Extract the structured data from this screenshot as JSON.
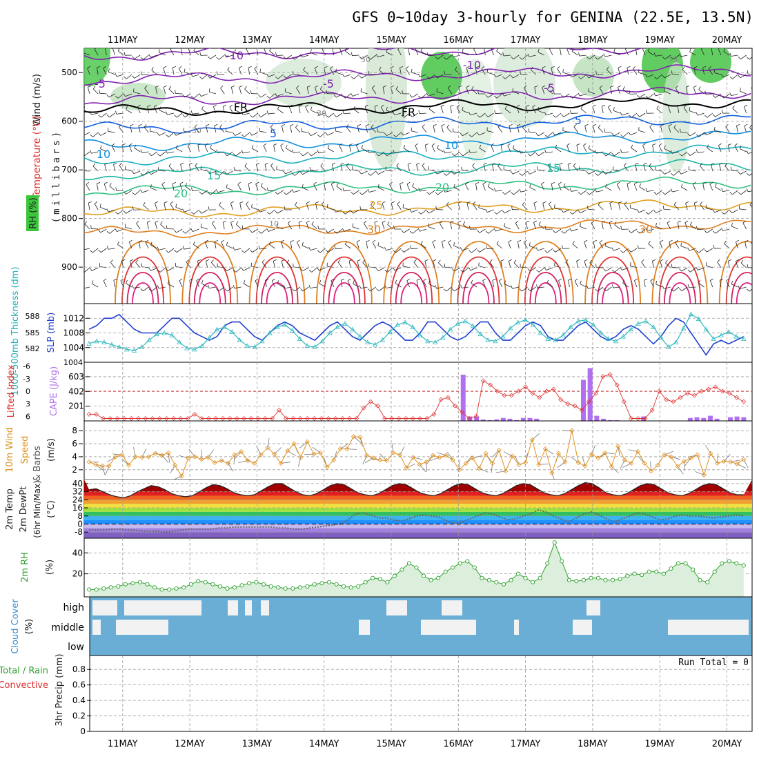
{
  "title": "GFS 0~10day 3-hourly for GENINA (22.5E, 13.5N)",
  "dates": [
    "11MAY",
    "12MAY",
    "13MAY",
    "14MAY",
    "15MAY",
    "16MAY",
    "17MAY",
    "18MAY",
    "19MAY",
    "20MAY"
  ],
  "colors": {
    "slp": "#1f3fd0",
    "thickness": "#30b8c0",
    "cape": "#b070f0",
    "lifted_index": "#e03030",
    "wind": "#e09020",
    "temp_ramp": [
      "#8060c0",
      "#a080e0",
      "#c8b8f0",
      "#1e90ff",
      "#3cb4f0",
      "#30c060",
      "#a0e040",
      "#f0e040",
      "#f0a030",
      "#f06020",
      "#e02020",
      "#a00000"
    ],
    "rh": "#30a030",
    "cloud_bg": "#6aaed6",
    "cloud_fill": "#f2f2f2",
    "isotherm_cold": "#8020b0",
    "isotherm_mid": "#1060e0",
    "isotherm_warm": "#e08020",
    "isotherm_hot": "#e02040"
  },
  "panels": {
    "upper_air": {
      "ylabel_unit": "(millibars)",
      "legend_wind": "Wind (m/s)",
      "legend_temp": "Temperature (°C)",
      "legend_rh": "RH (%)",
      "y_ticks": [
        "500",
        "600",
        "700",
        "800",
        "900"
      ],
      "contour_labels": [
        {
          "text": "-10"
        },
        {
          "text": "-10"
        },
        {
          "text": "-5"
        },
        {
          "text": "-5"
        },
        {
          "text": "-5"
        },
        {
          "text": "FR"
        },
        {
          "text": "FR"
        },
        {
          "text": "5"
        },
        {
          "text": "5"
        },
        {
          "text": "10"
        },
        {
          "text": "10"
        },
        {
          "text": "15"
        },
        {
          "text": "15"
        },
        {
          "text": "20"
        },
        {
          "text": "20"
        },
        {
          "text": "25"
        },
        {
          "text": "30"
        },
        {
          "text": "30"
        },
        {
          "text": "30"
        },
        {
          "text": "30"
        },
        {
          "text": "50"
        },
        {
          "text": "50"
        },
        {
          "text": "10"
        }
      ]
    },
    "slp_thickness": {
      "left_label": "1000-500mb Thickness (dm)",
      "right_label": "SLP (mb)",
      "thickness_ticks": [
        "588",
        "585",
        "582"
      ],
      "slp_ticks": [
        "1012",
        "1008",
        "1004",
        "1004"
      ]
    },
    "cape_li": {
      "li_label": "Lifted Index",
      "cape_label": "CAPE (J/kg)",
      "li_ticks": [
        "-6",
        "-3",
        "0",
        "3",
        "6"
      ],
      "cape_ticks": [
        "603",
        "402",
        "201"
      ]
    },
    "wind10": {
      "label_a": "10m Wind",
      "label_b": "Speed",
      "label_c": "& Barbs",
      "unit": "(m/s)",
      "y_ticks": [
        "8",
        "6",
        "4",
        "2"
      ]
    },
    "temp2m": {
      "label_a": "2m Temp",
      "label_b": "2m DewPt",
      "label_c": "(6hr Min/Max)",
      "unit": "(°C)",
      "y_ticks": [
        "40",
        "32",
        "24",
        "16",
        "8",
        "0",
        "-8"
      ]
    },
    "rh2m": {
      "label": "2m RH",
      "unit": "(%)",
      "y_ticks": [
        "40",
        "20"
      ]
    },
    "cloud": {
      "label": "Cloud Cover",
      "unit": "(%)",
      "levels": [
        "high",
        "middle",
        "low"
      ]
    },
    "precip": {
      "label_a": "Total / Rain",
      "label_b": "Convective",
      "unit": "3hr Precip (mm)",
      "y_ticks": [
        "0.8",
        "0.6",
        "0.4",
        "0.2",
        "0"
      ],
      "run_total": "Run Total = 0"
    }
  },
  "chart_data": {
    "type": "line",
    "x_unit": "day (10 May–20 May, 3-hourly)",
    "slp_mb": [
      1009,
      1010,
      1012,
      1012,
      1013,
      1011,
      1009,
      1008,
      1008,
      1008,
      1010,
      1012,
      1012,
      1010,
      1008,
      1007,
      1006,
      1007,
      1010,
      1011,
      1011,
      1009,
      1007,
      1006,
      1008,
      1010,
      1011,
      1010,
      1008,
      1007,
      1006,
      1008,
      1010,
      1011,
      1009,
      1007,
      1006,
      1008,
      1010,
      1011,
      1010,
      1008,
      1006,
      1006,
      1008,
      1011,
      1011,
      1009,
      1007,
      1006,
      1007,
      1009,
      1011,
      1011,
      1008,
      1006,
      1006,
      1008,
      1010,
      1011,
      1010,
      1007,
      1006,
      1006,
      1008,
      1010,
      1011,
      1009,
      1007,
      1006,
      1007,
      1009,
      1010,
      1009,
      1007,
      1005,
      1007,
      1010,
      1012,
      1011,
      1008,
      1005,
      1002,
      1005,
      1006,
      1005,
      1006,
      1007
    ],
    "thickness_dm": [
      583.2,
      583.6,
      583.4,
      583.0,
      582.6,
      582.2,
      582.0,
      582.6,
      583.8,
      584.8,
      585.0,
      584.6,
      583.4,
      582.4,
      582.2,
      582.8,
      584.2,
      585.6,
      586.0,
      585.2,
      583.8,
      582.8,
      582.6,
      583.6,
      585.0,
      586.0,
      586.4,
      585.4,
      584.0,
      582.8,
      582.6,
      583.6,
      585.0,
      586.0,
      586.6,
      585.6,
      584.4,
      583.4,
      583.0,
      583.8,
      585.2,
      586.4,
      586.8,
      586.0,
      584.6,
      583.6,
      583.4,
      584.2,
      585.6,
      586.6,
      587.0,
      586.2,
      584.8,
      583.8,
      583.6,
      584.4,
      585.8,
      586.8,
      587.2,
      586.4,
      585.0,
      584.0,
      583.8,
      584.6,
      586.0,
      587.0,
      587.2,
      586.4,
      585.0,
      584.0,
      583.6,
      584.4,
      585.6,
      586.6,
      587.0,
      586.0,
      584.2,
      582.6,
      583.4,
      585.8,
      588.2,
      587.4,
      585.6,
      584.0,
      584.6,
      585.2,
      584.4,
      584.0
    ],
    "lifted_index": [
      5.5,
      5.5,
      6.5,
      6.5,
      6.5,
      6.5,
      6.5,
      6.5,
      6.5,
      6.5,
      6.5,
      6.5,
      6.5,
      6.5,
      6.5,
      5.5,
      6.5,
      6.5,
      6.5,
      6.5,
      6.5,
      6.5,
      6.5,
      6.5,
      6.5,
      6.5,
      6.5,
      4.5,
      6.5,
      6.5,
      6.5,
      6.5,
      6.5,
      6.5,
      6.5,
      6.5,
      6.5,
      6.5,
      6.5,
      4.0,
      2.5,
      3.5,
      6.5,
      6.5,
      6.5,
      6.5,
      6.5,
      6.5,
      6.5,
      5.5,
      2.0,
      1.5,
      3.5,
      5.0,
      6.5,
      6.0,
      -2.5,
      -1.5,
      0.0,
      1.0,
      1.0,
      0.0,
      -1.0,
      0.5,
      1.5,
      0.0,
      -0.5,
      2.0,
      3.0,
      3.5,
      4.5,
      2.5,
      0.5,
      -3.5,
      -4.0,
      -1.5,
      2.5,
      6.5,
      6.5,
      6.5,
      4.5,
      0.0,
      2.0,
      2.5,
      1.5,
      0.5,
      1.0,
      0.0,
      -0.5,
      -1.0,
      0.0,
      0.5,
      1.5,
      2.5
    ],
    "cape_jkg": [
      0,
      0,
      0,
      0,
      0,
      0,
      0,
      0,
      0,
      0,
      0,
      0,
      0,
      0,
      0,
      0,
      0,
      0,
      0,
      0,
      0,
      0,
      0,
      0,
      0,
      0,
      0,
      0,
      0,
      0,
      0,
      0,
      0,
      0,
      0,
      0,
      0,
      0,
      0,
      0,
      0,
      0,
      0,
      0,
      0,
      0,
      0,
      0,
      0,
      0,
      0,
      0,
      0,
      0,
      0,
      0,
      630,
      60,
      60,
      20,
      10,
      20,
      40,
      30,
      10,
      40,
      40,
      30,
      0,
      0,
      0,
      0,
      0,
      0,
      560,
      720,
      70,
      30,
      10,
      10,
      0,
      0,
      0,
      60,
      0,
      0,
      0,
      0,
      0,
      0,
      40,
      50,
      40,
      70,
      30,
      0,
      50,
      60,
      50
    ],
    "wind10m_ms": [
      3.2,
      2.8,
      2.6,
      2.6,
      4.0,
      4.3,
      2.7,
      4.0,
      3.9,
      4.0,
      4.5,
      4.2,
      4.6,
      2.7,
      1.0,
      3.8,
      4.0,
      3.6,
      3.9,
      3.1,
      3.4,
      3.0,
      4.3,
      4.8,
      3.4,
      3.0,
      4.3,
      5.4,
      4.4,
      3.0,
      4.9,
      6.0,
      3.9,
      6.3,
      4.4,
      4.6,
      2.4,
      3.5,
      5.2,
      5.2,
      7.1,
      7.0,
      4.2,
      3.8,
      3.5,
      3.4,
      4.6,
      4.3,
      2.3,
      3.9,
      2.8,
      3.2,
      4.2,
      3.9,
      4.2,
      3.5,
      2.0,
      3.0,
      3.8,
      2.2,
      4.5,
      3.0,
      5.0,
      1.8,
      4.1,
      2.8,
      3.1,
      6.6,
      2.8,
      5.2,
      1.5,
      4.5,
      3.2,
      8.0,
      3.1,
      2.6,
      4.4,
      3.8,
      4.6,
      2.5,
      5.6,
      3.5,
      3.0,
      4.8,
      3.0,
      1.8,
      2.7,
      4.3,
      4.0,
      2.5,
      3.3,
      3.8,
      4.3,
      1.2,
      4.5,
      3.0,
      3.3,
      3.2,
      2.9,
      3.6
    ],
    "temp2m_c": [
      34,
      35,
      32,
      29,
      27,
      26,
      28,
      32,
      35,
      38,
      37,
      34,
      30,
      28,
      27,
      28,
      32,
      36,
      39,
      38,
      35,
      31,
      29,
      28,
      29,
      33,
      37,
      40,
      40,
      36,
      32,
      29,
      28,
      30,
      34,
      38,
      40,
      39,
      35,
      31,
      29,
      28,
      30,
      34,
      38,
      40,
      39,
      35,
      31,
      29,
      28,
      30,
      34,
      38,
      40,
      39,
      35,
      31,
      29,
      28,
      30,
      34,
      38,
      40,
      39,
      35,
      31,
      29,
      28,
      30,
      34,
      38,
      41,
      40,
      36,
      31,
      29,
      28,
      30,
      34,
      38,
      40,
      39,
      35,
      31,
      29,
      28,
      30,
      34,
      38,
      40,
      39,
      35,
      31,
      29,
      29
    ],
    "dewpt2m_c": [
      -6,
      -6,
      -6,
      -5,
      -5,
      -6,
      -6,
      -7,
      -7,
      -7,
      -8,
      -7,
      -6,
      -5,
      -5,
      -5,
      -5,
      -4,
      -4,
      -3,
      -3,
      -3,
      -3,
      -3,
      -3,
      -4,
      -4,
      -5,
      -5,
      -4,
      -3,
      -2,
      -1,
      0,
      4,
      10,
      11,
      9,
      6,
      6,
      4,
      3,
      5,
      8,
      9,
      8,
      7,
      3,
      1,
      2,
      5,
      8,
      11,
      10,
      7,
      4,
      5,
      8,
      10,
      14,
      12,
      8,
      5,
      2,
      6,
      10,
      12,
      9,
      5,
      2,
      5,
      8,
      11,
      10,
      7,
      4,
      5,
      8,
      9,
      8,
      8,
      7,
      6,
      7,
      8,
      9,
      8
    ],
    "rh2m_pct": [
      5,
      5,
      6,
      7,
      8,
      10,
      11,
      12,
      10,
      7,
      5,
      5,
      6,
      7,
      10,
      13,
      12,
      10,
      8,
      6,
      7,
      9,
      11,
      12,
      10,
      8,
      7,
      6,
      6,
      7,
      8,
      10,
      11,
      12,
      10,
      8,
      7,
      8,
      12,
      16,
      15,
      12,
      18,
      24,
      30,
      26,
      18,
      14,
      16,
      22,
      26,
      30,
      32,
      26,
      16,
      14,
      12,
      10,
      14,
      20,
      16,
      12,
      16,
      30,
      50,
      32,
      14,
      13,
      14,
      16,
      16,
      14,
      14,
      15,
      18,
      20,
      19,
      22,
      22,
      20,
      25,
      30,
      30,
      24,
      14,
      12,
      22,
      30,
      32,
      30,
      28
    ],
    "precip_3hr_mm": [
      0,
      0,
      0,
      0,
      0,
      0,
      0,
      0,
      0,
      0
    ],
    "run_total_mm": 0
  }
}
